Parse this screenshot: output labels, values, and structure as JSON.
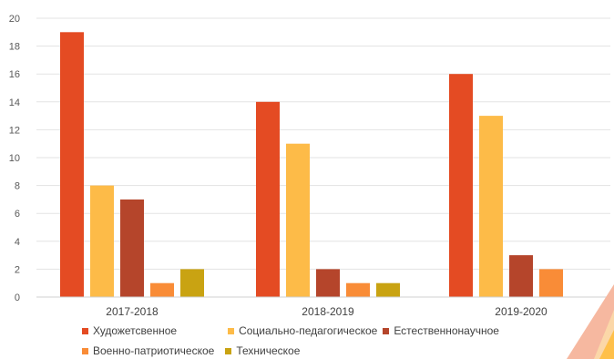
{
  "chart_data": {
    "type": "bar",
    "categories": [
      "2017-2018",
      "2018-2019",
      "2019-2020"
    ],
    "series": [
      {
        "name": "Художетсвенное",
        "color": "#E44B23",
        "values": [
          19,
          14,
          16
        ]
      },
      {
        "name": "Социально-педагогическое",
        "color": "#FDBB48",
        "values": [
          8,
          11,
          13
        ]
      },
      {
        "name": "Естественнонаучное",
        "color": "#B5452B",
        "values": [
          7,
          2,
          3
        ]
      },
      {
        "name": "Военно-патриотическое",
        "color": "#F98C37",
        "values": [
          1,
          1,
          2
        ]
      },
      {
        "name": "Техническое",
        "color": "#C9A312",
        "values": [
          2,
          1,
          0
        ]
      }
    ],
    "yticks": [
      0,
      2,
      4,
      6,
      8,
      10,
      12,
      14,
      16,
      18,
      20
    ],
    "ylim": [
      0,
      20
    ],
    "grid": true,
    "legend_position": "bottom",
    "title": "",
    "xlabel": "",
    "ylabel": ""
  },
  "decoration": {
    "corner_colors": [
      "#F6B8A0",
      "#FBD7A8",
      "#FFC04A"
    ]
  }
}
